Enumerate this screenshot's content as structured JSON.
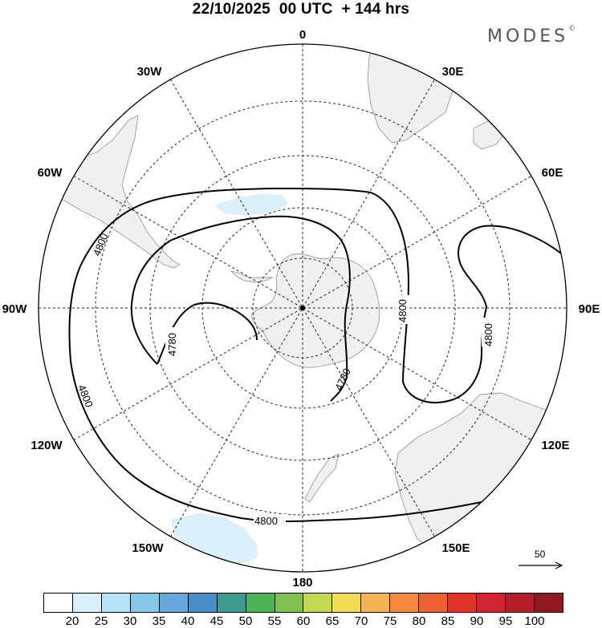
{
  "header": {
    "title": "22/10/2025  00 UTC  + 144 hrs",
    "brand": "MODES",
    "brand_mark": "©"
  },
  "map": {
    "projection": "south-polar-stereographic",
    "meridian_labels": {
      "lon_0": "0",
      "lon_30e": "30E",
      "lon_60e": "60E",
      "lon_90e": "90E",
      "lon_120e": "120E",
      "lon_150e": "150E",
      "lon_180": "180",
      "lon_150w": "150W",
      "lon_120w": "120W",
      "lon_90w": "90W",
      "lon_60w": "60W",
      "lon_30w": "30W"
    },
    "contour_labels": {
      "c4800_a": "4800",
      "c4800_b": "4800",
      "c4800_c": "4800",
      "c4800_d": "4800",
      "c4800_e": "4800",
      "c4780_a": "4780",
      "c4780_b": "4780"
    },
    "wind_scale_label": "50",
    "colors": {
      "land": "#f0f0f0",
      "coast": "#9a9a9a",
      "wind_shade_light": "#daf1fc",
      "contour": "#000000"
    }
  },
  "colorbar": {
    "colors": [
      "#ffffff",
      "#d8f0fc",
      "#b3e3f7",
      "#86c8ea",
      "#64a7da",
      "#4a90c8",
      "#3e9a90",
      "#4db355",
      "#80c050",
      "#c2d94e",
      "#f5dc55",
      "#f6b450",
      "#f48a3e",
      "#ef6030",
      "#dd3628",
      "#cf2530",
      "#b51d2a",
      "#921820"
    ],
    "ticks": [
      "20",
      "25",
      "30",
      "35",
      "40",
      "45",
      "50",
      "55",
      "60",
      "65",
      "70",
      "75",
      "80",
      "85",
      "90",
      "95",
      "100"
    ]
  }
}
